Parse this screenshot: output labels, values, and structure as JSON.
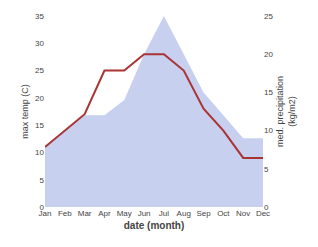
{
  "chart_data": {
    "type": "line",
    "categories": [
      "Jan",
      "Feb",
      "Mar",
      "Apr",
      "May",
      "Jun",
      "Jul",
      "Aug",
      "Sep",
      "Oct",
      "Nov",
      "Dec"
    ],
    "xlabel": "date (month)",
    "ylabel": "max temp (C)",
    "y2label": "med. precipitation\n(kg/m2)",
    "ylim": [
      0,
      35
    ],
    "yticks": [
      0,
      5,
      10,
      15,
      20,
      25,
      30,
      35
    ],
    "y2lim": [
      0,
      25
    ],
    "y2ticks": [
      0,
      5,
      10,
      15,
      20,
      25
    ],
    "grid": false,
    "series": [
      {
        "type": "area",
        "axis": "y2",
        "color": "#c8d0f0",
        "values": [
          8,
          10,
          12,
          12,
          14,
          20,
          25,
          20,
          15,
          12,
          9,
          9
        ]
      },
      {
        "type": "line",
        "color": "#aa3333",
        "values": [
          11,
          14,
          17,
          25,
          25,
          28,
          28,
          25,
          18,
          14,
          9,
          9
        ]
      }
    ]
  }
}
